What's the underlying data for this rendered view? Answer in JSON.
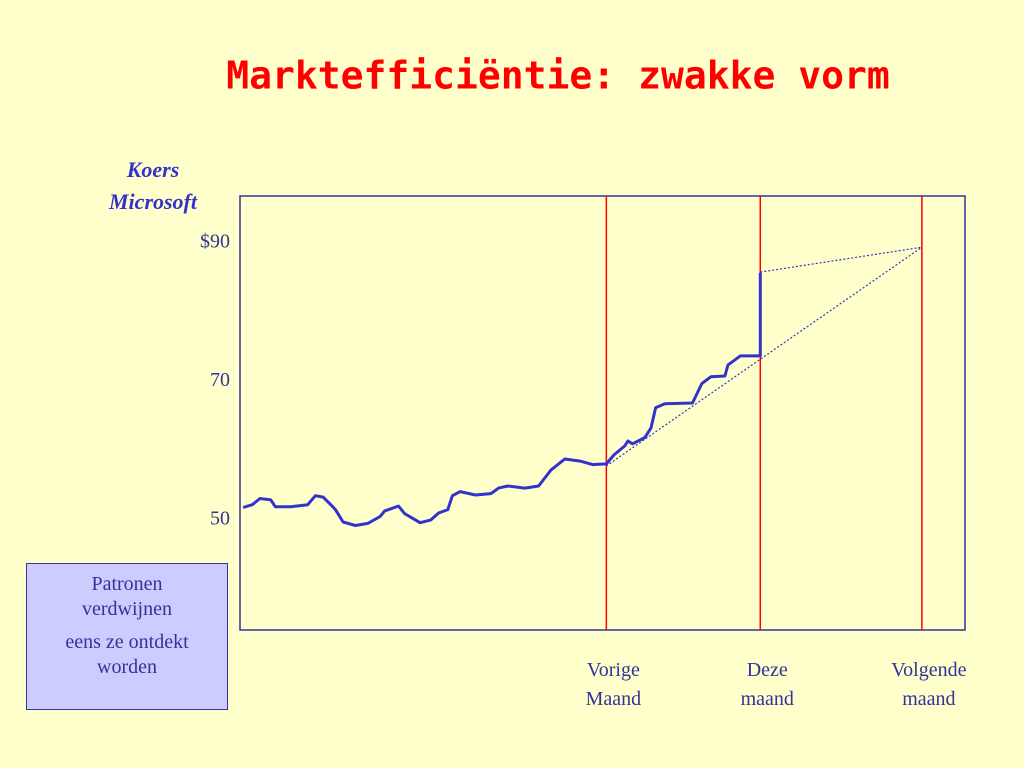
{
  "chart_data": {
    "type": "line",
    "title": "Marktefficiëntie:  zwakke vorm",
    "ylabel": "Koers Microsoft",
    "annotations": [
      "Patronen verdwijnen",
      "eens ze ontdekt worden"
    ],
    "xlim": [
      -3.38,
      1.33
    ],
    "ylim": [
      34.1,
      96.8
    ],
    "xticks": [
      {
        "value": -1,
        "label": "Vorige Maand"
      },
      {
        "value": 0,
        "label": "Deze maand"
      },
      {
        "value": 1.05,
        "label": "Volgende maand"
      }
    ],
    "yticks": [
      {
        "value": 90,
        "label": "$90"
      },
      70,
      50
    ],
    "x_grid": true,
    "grid_color": "#ff0000",
    "series": [
      {
        "color": "#3333cc",
        "style": "solid",
        "x": [
          -3.36,
          -3.3,
          -3.25,
          -3.18,
          -3.15,
          -3.05,
          -2.94,
          -2.89,
          -2.84,
          -2.79,
          -2.76,
          -2.71,
          -2.63,
          -2.55,
          -2.47,
          -2.44,
          -2.35,
          -2.31,
          -2.21,
          -2.14,
          -2.09,
          -2.03,
          -2.0,
          -1.95,
          -1.85,
          -1.75,
          -1.7,
          -1.64,
          -1.53,
          -1.44,
          -1.36,
          -1.27,
          -1.17,
          -1.09,
          -1.0,
          -0.95,
          -0.88,
          -0.86,
          -0.83,
          -0.75,
          -0.71,
          -0.68,
          -0.62,
          -0.44,
          -0.38,
          -0.32,
          -0.23,
          -0.21,
          -0.13,
          -0.01,
          0,
          0
        ],
        "values": [
          51.8,
          52.2,
          53.1,
          52.9,
          51.9,
          51.9,
          52.2,
          53.5,
          53.3,
          52.2,
          51.5,
          49.7,
          49.2,
          49.5,
          50.5,
          51.3,
          52.0,
          50.9,
          49.6,
          50.0,
          51.0,
          51.5,
          53.5,
          54.1,
          53.6,
          53.8,
          54.6,
          54.9,
          54.6,
          54.9,
          57.2,
          58.8,
          58.5,
          58.0,
          58.1,
          59.4,
          60.7,
          61.4,
          61.0,
          61.9,
          63.3,
          66.2,
          66.8,
          66.9,
          69.7,
          70.7,
          70.8,
          72.4,
          73.7,
          73.7,
          73.7,
          85.7
        ]
      },
      {
        "color": "#3333cc",
        "style": "dotted",
        "x": [
          -1,
          1.05
        ],
        "values": [
          57.8,
          89.4
        ]
      },
      {
        "color": "#3333cc",
        "style": "dotted",
        "x": [
          0,
          1.05
        ],
        "values": [
          85.8,
          89.4
        ]
      }
    ]
  }
}
